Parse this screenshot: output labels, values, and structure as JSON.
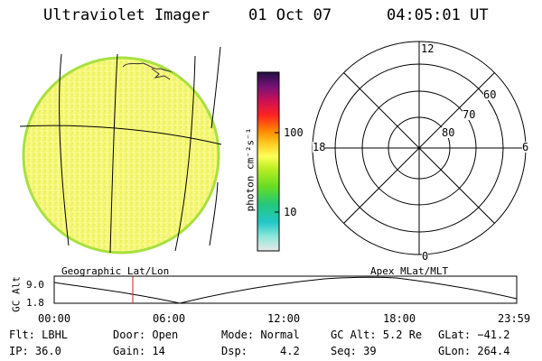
{
  "header": {
    "instrument": "Ultraviolet Imager",
    "date": "01 Oct 07",
    "time": "04:05:01 UT"
  },
  "colorbar": {
    "label": "photon cm⁻²s⁻¹",
    "ticks": [
      "100",
      "10"
    ],
    "stops": [
      "#e8e8e8",
      "#8ee8d8",
      "#22c8c8",
      "#22c87a",
      "#66dd22",
      "#bbee22",
      "#ffff55",
      "#ffcc22",
      "#ff8800",
      "#ff2222",
      "#cc1155",
      "#771177",
      "#221144"
    ]
  },
  "polar": {
    "mlt_labels": {
      "top": "12",
      "left": "18",
      "right": "6",
      "bottom": "0"
    },
    "lat_labels": [
      "60",
      "70",
      "80"
    ]
  },
  "altitude_panel": {
    "left_caption": "Geographic Lat/Lon",
    "right_caption": "Apex MLat/MLT",
    "y_axis_label": "GC Alt",
    "y_ticks": [
      "9.0",
      "1.8"
    ],
    "x_ticks": [
      "00:00",
      "06:00",
      "12:00",
      "18:00",
      "23:59"
    ],
    "marker_time_hours": 4.08
  },
  "footer": {
    "row1": [
      "Flt: LBHL",
      "Door: Open",
      "Mode: Normal",
      "GC Alt: 5.2 Re",
      "GLat: −41.2"
    ],
    "row2": [
      "IP: 36.0",
      "Gain: 14",
      "Dsp:     4.2",
      "Seq: 39",
      "GLon: 264.4"
    ]
  },
  "colors": {
    "disk_fill": "#f7f77a",
    "disk_edge": "#a8e040",
    "marker": "#cc2222"
  }
}
